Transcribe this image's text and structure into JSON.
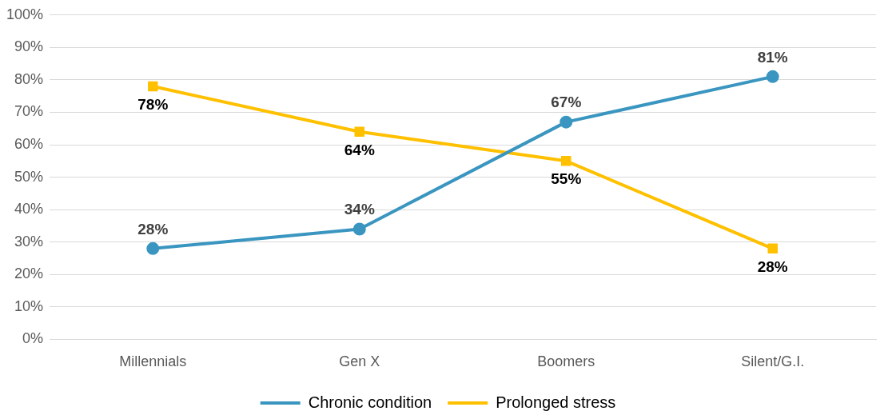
{
  "chart_data": {
    "type": "line",
    "categories": [
      "Millennials",
      "Gen X",
      "Boomers",
      "Silent/G.I."
    ],
    "series": [
      {
        "name": "Chronic condition",
        "color": "#3a96c0",
        "marker": "circle",
        "values": [
          28,
          34,
          67,
          81
        ],
        "value_labels": [
          "28%",
          "34%",
          "67%",
          "81%"
        ]
      },
      {
        "name": "Prolonged stress",
        "color": "#ffc000",
        "marker": "square",
        "values": [
          78,
          64,
          55,
          28
        ],
        "value_labels": [
          "78%",
          "64%",
          "55%",
          "28%"
        ]
      }
    ],
    "ylim": [
      0,
      100
    ],
    "yticks": [
      {
        "value": 0,
        "label": "0%"
      },
      {
        "value": 10,
        "label": "10%"
      },
      {
        "value": 20,
        "label": "20%"
      },
      {
        "value": 30,
        "label": "30%"
      },
      {
        "value": 40,
        "label": "40%"
      },
      {
        "value": 50,
        "label": "50%"
      },
      {
        "value": 60,
        "label": "60%"
      },
      {
        "value": 70,
        "label": "70%"
      },
      {
        "value": 80,
        "label": "80%"
      },
      {
        "value": 90,
        "label": "90%"
      },
      {
        "value": 100,
        "label": "100%"
      }
    ],
    "grid": "y",
    "legend": "bottom",
    "line_style": "solid"
  }
}
